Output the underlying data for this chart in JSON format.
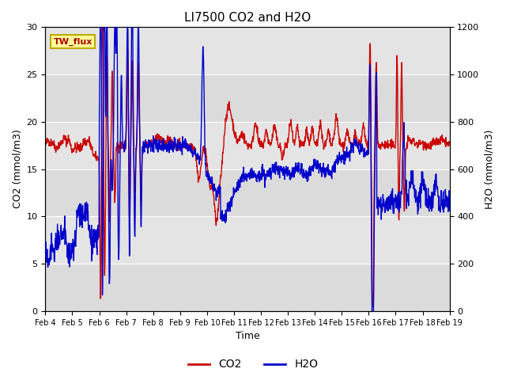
{
  "title": "LI7500 CO2 and H2O",
  "xlabel": "Time",
  "ylabel_left": "CO2 (mmol/m3)",
  "ylabel_right": "H2O (mmol/m3)",
  "xtick_labels": [
    "Feb 4",
    "Feb 5",
    "Feb 6",
    "Feb 7",
    "Feb 8",
    "Feb 9",
    "Feb 10",
    "Feb 11",
    "Feb 12",
    "Feb 13",
    "Feb 14",
    "Feb 15",
    "Feb 16",
    "Feb 17",
    "Feb 18",
    "Feb 19"
  ],
  "ylim_left": [
    0,
    30
  ],
  "ylim_right": [
    0,
    1200
  ],
  "co2_color": "#cc0000",
  "h2o_color": "#0000cc",
  "bg_color": "#e0e0e0",
  "annotation_text": "TW_flux",
  "annotation_bg": "#ffff99",
  "annotation_border": "#bbaa00",
  "legend_co2": "CO2",
  "legend_h2o": "H2O",
  "linewidth": 1.0,
  "figwidth": 6.4,
  "figheight": 4.8,
  "dpi": 100
}
